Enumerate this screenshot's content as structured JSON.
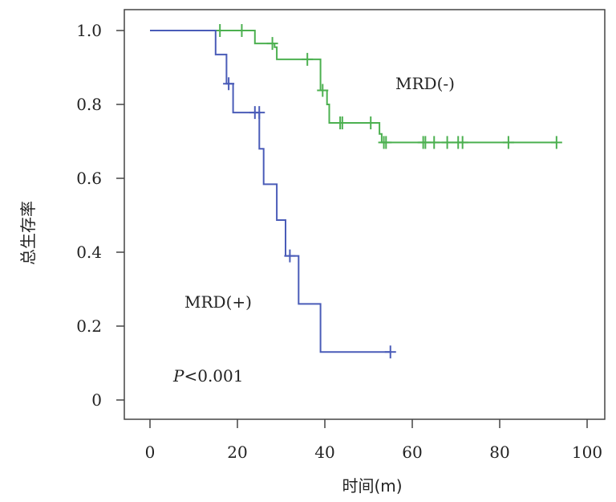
{
  "chart_data": {
    "type": "line",
    "chart_kind": "kaplan-meier",
    "xlabel": "时间(m)",
    "ylabel": "总生存率",
    "xlim": [
      0,
      100
    ],
    "ylim": [
      0,
      1.0
    ],
    "xticks": [
      0,
      20,
      40,
      60,
      80,
      100
    ],
    "xtick_labels": [
      "0",
      "20",
      "40",
      "60",
      "80",
      "100"
    ],
    "yticks": [
      0,
      0.2,
      0.4,
      0.6,
      0.8,
      1.0
    ],
    "ytick_labels": [
      "0",
      "0.2",
      "0.4",
      "0.6",
      "0.8",
      "1.0"
    ],
    "grid": false,
    "series": [
      {
        "name": "MRD(-)",
        "color": "#4cb050",
        "steps": [
          [
            0,
            1.0
          ],
          [
            24,
            0.965
          ],
          [
            28.5,
            0.955
          ],
          [
            29,
            0.922
          ],
          [
            39,
            0.838
          ],
          [
            40.5,
            0.8
          ],
          [
            41,
            0.75
          ],
          [
            52.5,
            0.72
          ],
          [
            53,
            0.697
          ],
          [
            93,
            0.697
          ]
        ],
        "censored": [
          [
            16,
            1.0
          ],
          [
            21,
            1.0
          ],
          [
            28,
            0.965
          ],
          [
            36,
            0.922
          ],
          [
            39.5,
            0.838
          ],
          [
            43.5,
            0.75
          ],
          [
            44,
            0.75
          ],
          [
            50.5,
            0.75
          ],
          [
            53.5,
            0.697
          ],
          [
            54,
            0.697
          ],
          [
            62.5,
            0.697
          ],
          [
            63,
            0.697
          ],
          [
            65,
            0.697
          ],
          [
            68,
            0.697
          ],
          [
            70.5,
            0.697
          ],
          [
            71.5,
            0.697
          ],
          [
            82,
            0.697
          ],
          [
            93,
            0.697
          ]
        ]
      },
      {
        "name": "MRD(+)",
        "color": "#4a5cb8",
        "steps": [
          [
            0,
            1.0
          ],
          [
            15,
            0.935
          ],
          [
            17.5,
            0.856
          ],
          [
            19,
            0.778
          ],
          [
            25,
            0.68
          ],
          [
            26,
            0.584
          ],
          [
            29,
            0.487
          ],
          [
            31,
            0.39
          ],
          [
            34,
            0.26
          ],
          [
            39,
            0.13
          ],
          [
            55,
            0.13
          ]
        ],
        "censored": [
          [
            18,
            0.856
          ],
          [
            24,
            0.778
          ],
          [
            25,
            0.778
          ],
          [
            32,
            0.39
          ],
          [
            55,
            0.13
          ]
        ]
      }
    ],
    "annotations": [
      "MRD(-)",
      "MRD(+)",
      "P<0.001"
    ]
  },
  "labels": {
    "mrd_neg": "MRD(-)",
    "mrd_pos": "MRD(+)",
    "p_letter": "P",
    "p_rest": "<0.001"
  }
}
